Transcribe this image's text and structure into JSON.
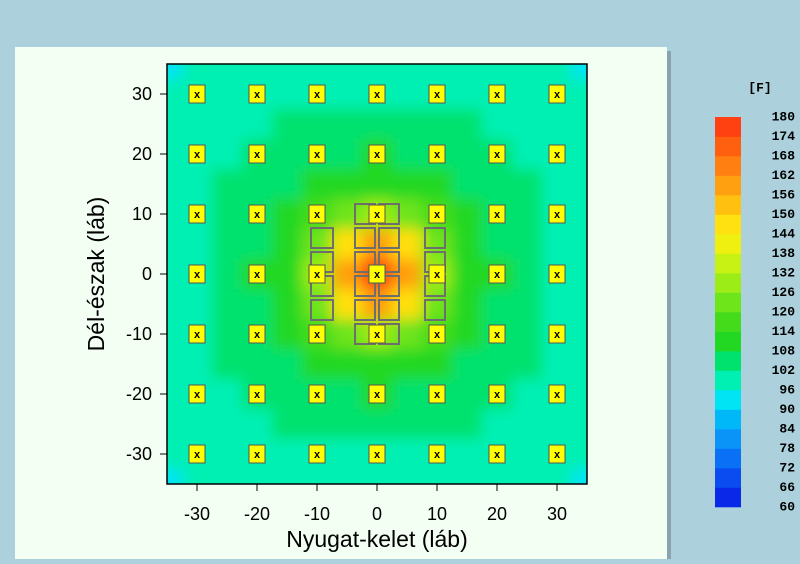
{
  "chart_data": {
    "type": "contour",
    "xlabel": "Nyugat-kelet (láb)",
    "ylabel": "Dél-észak (láb)",
    "colorbar_title": "[F]",
    "xlim": [
      -35,
      35
    ],
    "ylim": [
      -35,
      35
    ],
    "xticks": [
      -30,
      -20,
      -10,
      0,
      10,
      20,
      30
    ],
    "yticks": [
      -30,
      -20,
      -10,
      0,
      10,
      20,
      30
    ],
    "x": [
      -35,
      -30,
      -25,
      -20,
      -15,
      -10,
      -5,
      0,
      5,
      10,
      15,
      20,
      25,
      30,
      35
    ],
    "y": [
      35,
      30,
      25,
      20,
      15,
      10,
      5,
      0,
      -5,
      -10,
      -15,
      -20,
      -25,
      -30,
      -35
    ],
    "z": [
      [
        95,
        96,
        96,
        97,
        98,
        98,
        99,
        99,
        99,
        98,
        98,
        97,
        96,
        96,
        95
      ],
      [
        96,
        96,
        97,
        98,
        99,
        100,
        101,
        101,
        101,
        100,
        99,
        98,
        97,
        96,
        96
      ],
      [
        96,
        97,
        99,
        100,
        102,
        103,
        104,
        104,
        104,
        103,
        102,
        100,
        99,
        97,
        96
      ],
      [
        97,
        98,
        100,
        102,
        104,
        106,
        107,
        108,
        107,
        106,
        104,
        102,
        100,
        98,
        97
      ],
      [
        98,
        99,
        102,
        104,
        107,
        109,
        112,
        113,
        112,
        109,
        107,
        104,
        102,
        99,
        98
      ],
      [
        98,
        100,
        103,
        106,
        109,
        115,
        124,
        129,
        124,
        115,
        109,
        106,
        103,
        100,
        98
      ],
      [
        99,
        101,
        104,
        107,
        112,
        124,
        147,
        160,
        147,
        124,
        112,
        107,
        104,
        101,
        99
      ],
      [
        99,
        101,
        104,
        108,
        113,
        129,
        160,
        180,
        160,
        129,
        113,
        108,
        104,
        101,
        99
      ],
      [
        99,
        101,
        104,
        107,
        112,
        124,
        147,
        160,
        147,
        124,
        112,
        107,
        104,
        101,
        99
      ],
      [
        98,
        100,
        103,
        106,
        109,
        115,
        124,
        129,
        124,
        115,
        109,
        106,
        103,
        100,
        98
      ],
      [
        98,
        99,
        102,
        104,
        107,
        109,
        112,
        113,
        112,
        109,
        107,
        104,
        102,
        99,
        98
      ],
      [
        97,
        98,
        100,
        102,
        104,
        106,
        107,
        108,
        107,
        106,
        104,
        102,
        100,
        98,
        97
      ],
      [
        96,
        97,
        99,
        100,
        102,
        103,
        104,
        104,
        104,
        103,
        102,
        100,
        99,
        97,
        96
      ],
      [
        96,
        96,
        97,
        98,
        99,
        100,
        101,
        101,
        101,
        100,
        99,
        98,
        97,
        96,
        96
      ],
      [
        95,
        96,
        96,
        97,
        98,
        98,
        99,
        99,
        99,
        98,
        98,
        97,
        96,
        96,
        95
      ]
    ],
    "levels": [
      60,
      66,
      72,
      78,
      84,
      90,
      96,
      102,
      108,
      114,
      120,
      126,
      132,
      138,
      144,
      150,
      156,
      162,
      168,
      174,
      180
    ],
    "colors": [
      "#0a28e8",
      "#0a4cf0",
      "#0a70f5",
      "#0a94f8",
      "#00b8f8",
      "#00e4f4",
      "#00f0b4",
      "#00e26e",
      "#22d822",
      "#44dc1a",
      "#6ee41a",
      "#9cec18",
      "#c8f214",
      "#f0f010",
      "#ffe010",
      "#ffc010",
      "#ffa010",
      "#ff8010",
      "#ff6010",
      "#ff4010"
    ],
    "sensors": {
      "label": "x",
      "x": [
        -30,
        -20,
        -10,
        0,
        10,
        20,
        30
      ],
      "y": [
        30,
        20,
        10,
        0,
        -10,
        -20,
        -30
      ]
    }
  }
}
